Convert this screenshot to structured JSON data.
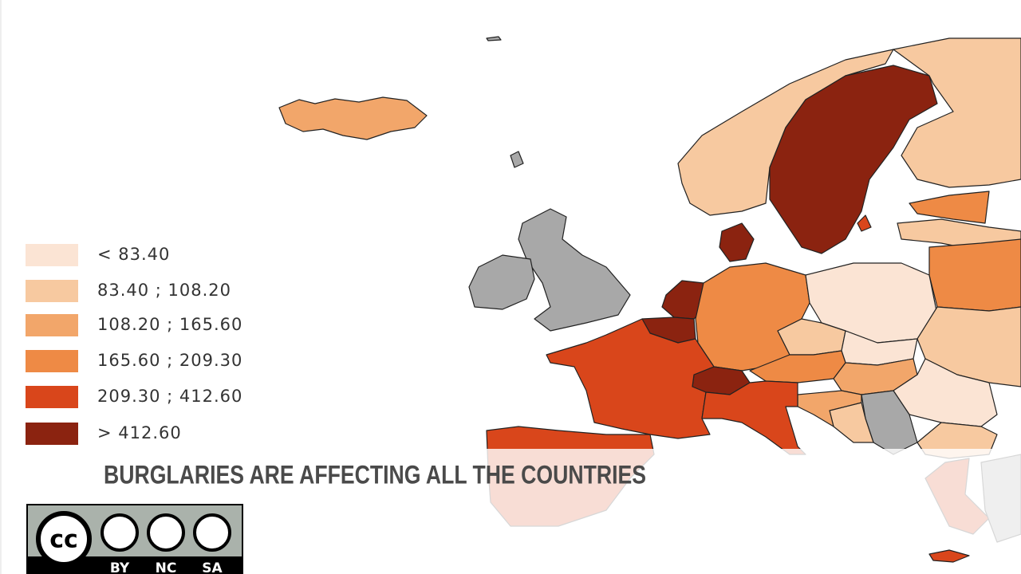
{
  "legend": {
    "items": [
      {
        "label": "< 83.40",
        "color": "#fbe4d4"
      },
      {
        "label": "83.40 ; 108.20",
        "color": "#f7c9a0"
      },
      {
        "label": "108.20 ; 165.60",
        "color": "#f2a66a"
      },
      {
        "label": "165.60 ; 209.30",
        "color": "#ee8a45"
      },
      {
        "label": "209.30 ; 412.60",
        "color": "#d9461b"
      },
      {
        "label": "> 412.60",
        "color": "#8b2310"
      }
    ]
  },
  "caption": "BURGLARIES ARE AFFECTING ALL THE COUNTRIES",
  "license": {
    "logo": "cc",
    "terms": [
      "BY",
      "NC",
      "SA"
    ]
  }
}
